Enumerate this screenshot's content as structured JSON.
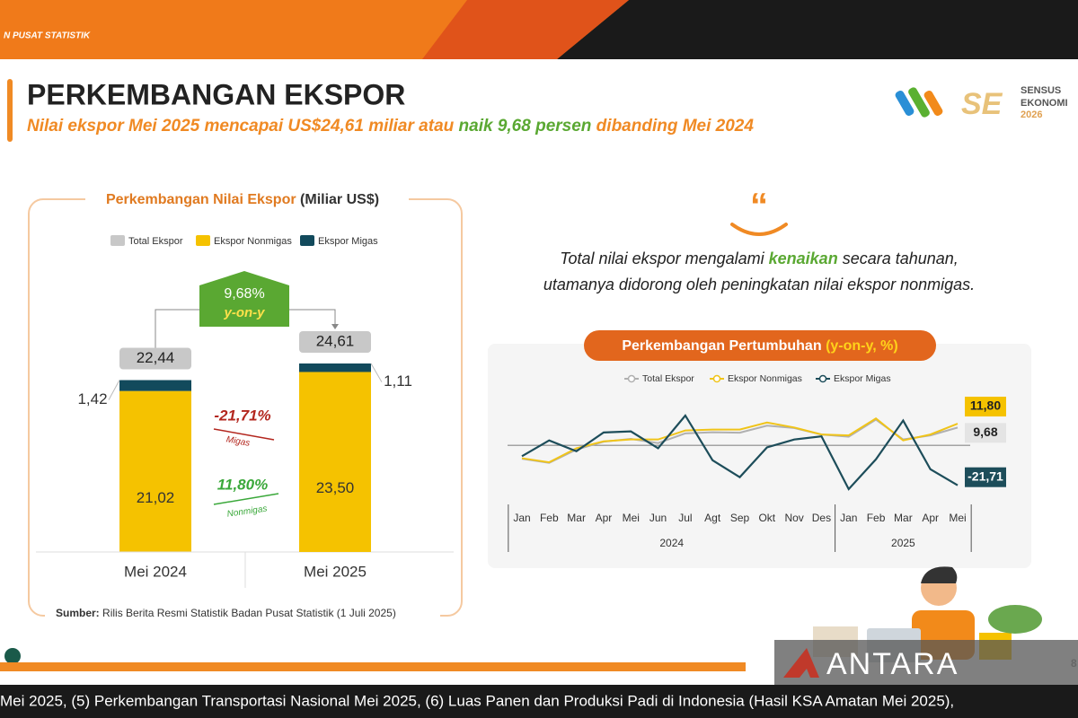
{
  "top_bar": {
    "label": "N PUSAT STATISTIK"
  },
  "header": {
    "title": "PERKEMBANGAN EKSPOR",
    "subtitle": [
      "Nilai ekspor Mei 2025 mencapai US$24,61 miliar atau ",
      "naik 9,68 persen",
      " dibanding Mei 2024"
    ]
  },
  "logo": {
    "lines": [
      "SENSUS",
      "EKONOMI",
      "2026"
    ]
  },
  "quote": {
    "lines": [
      [
        "Total nilai ekspor mengalami ",
        "kenaikan",
        " secara tahunan,"
      ],
      [
        "utamanya didorong oleh peningkatan nilai ekspor nonmigas."
      ]
    ]
  },
  "source": {
    "label": "Sumber:",
    "text": "Rilis Berita Resmi Statistik Badan Pusat Statistik (1 Juli 2025)"
  },
  "chart_data": [
    {
      "type": "stacked-bar",
      "title": "Perkembangan Nilai Ekspor",
      "unit": "(Miliar US$)",
      "categories": [
        "Mei 2024",
        "Mei 2025"
      ],
      "series": [
        {
          "name": "Total Ekspor",
          "color": "#c8c8c8",
          "values": [
            22.44,
            24.61
          ],
          "value_labels": [
            "22,44",
            "24,61"
          ]
        },
        {
          "name": "Ekspor Nonmigas",
          "color": "#f5c200",
          "values": [
            21.02,
            23.5
          ],
          "value_labels": [
            "21,02",
            "23,50"
          ]
        },
        {
          "name": "Ekspor Migas",
          "color": "#124a5c",
          "values": [
            1.42,
            1.11
          ],
          "value_labels": [
            "1,42",
            "1,11"
          ]
        }
      ],
      "annotations": {
        "total_change": "9,68%",
        "total_change_note": "y-on-y",
        "migas_change": "-21,71%",
        "migas_note": "Migas",
        "nonmigas_change": "11,80%",
        "nonmigas_note": "Nonmigas"
      }
    },
    {
      "type": "line",
      "title": "Perkembangan Pertumbuhan",
      "unit": "(y-on-y, %)",
      "categories": [
        "Jan",
        "Feb",
        "Mar",
        "Apr",
        "Mei",
        "Jun",
        "Jul",
        "Agt",
        "Sep",
        "Okt",
        "Nov",
        "Des",
        "Jan",
        "Feb",
        "Mar",
        "Apr",
        "Mei"
      ],
      "groups": [
        {
          "label": "2024",
          "count": 12
        },
        {
          "label": "2025",
          "count": 5
        }
      ],
      "series": [
        {
          "name": "Total Ekspor",
          "color": "#b0b0b0",
          "values": [
            -7.3,
            -9.5,
            -2.3,
            2.0,
            3.5,
            1.2,
            6.5,
            7.1,
            6.9,
            10.7,
            9.4,
            5.9,
            4.7,
            14.0,
            3.2,
            5.4,
            9.68
          ],
          "value_labels": [
            null,
            null,
            null,
            null,
            null,
            null,
            null,
            null,
            null,
            null,
            null,
            null,
            null,
            null,
            null,
            null,
            "9,68"
          ]
        },
        {
          "name": "Ekspor Nonmigas",
          "color": "#f0c419",
          "values": [
            -7.0,
            -9.2,
            -1.6,
            2.2,
            3.2,
            3.2,
            8.1,
            8.6,
            8.6,
            12.4,
            9.7,
            5.9,
            5.4,
            14.6,
            2.7,
            5.9,
            11.8
          ],
          "value_labels": [
            null,
            null,
            null,
            null,
            null,
            null,
            null,
            null,
            null,
            null,
            null,
            null,
            null,
            null,
            null,
            null,
            "11,80"
          ]
        },
        {
          "name": "Ekspor Migas",
          "color": "#1d4d5a",
          "values": [
            -5.9,
            2.7,
            -3.2,
            7.0,
            7.6,
            -1.6,
            16.2,
            -8.1,
            -17.3,
            -1.1,
            3.2,
            4.9,
            -23.8,
            -7.6,
            13.5,
            -13.0,
            -21.71
          ],
          "value_labels": [
            null,
            null,
            null,
            null,
            null,
            null,
            null,
            null,
            null,
            null,
            null,
            null,
            null,
            null,
            null,
            null,
            "-21,71"
          ]
        }
      ]
    }
  ],
  "footer": {
    "page": "8",
    "watermark": "ANTARA",
    "ticker": "Mei 2025, (5) Perkembangan Transportasi Nasional Mei 2025, (6) Luas Panen dan Produksi Padi di Indonesia (Hasil KSA Amatan Mei 2025),"
  }
}
